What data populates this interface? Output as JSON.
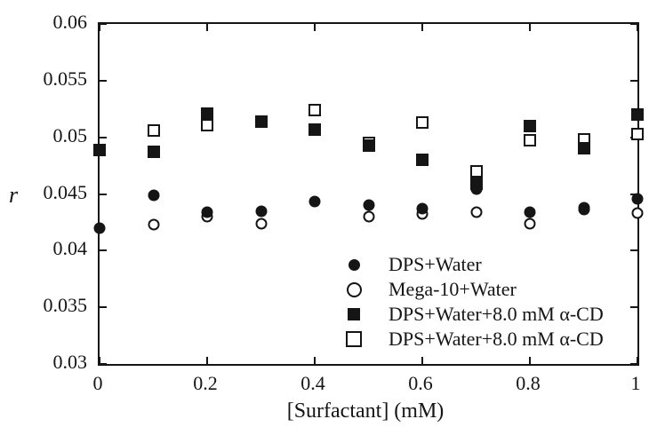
{
  "figure": {
    "background": "#ffffff",
    "ink": "#151515"
  },
  "chart_data": {
    "type": "scatter",
    "title": "",
    "xlabel": "[Surfactant] (mM)",
    "ylabel": "r",
    "xlim": [
      0,
      1
    ],
    "ylim": [
      0.03,
      0.06
    ],
    "grid": false,
    "frame": "box-with-inward-ticks",
    "x_ticks": [
      0,
      0.2,
      0.4,
      0.6,
      0.8,
      1
    ],
    "x_tick_labels": [
      "0",
      "0.2",
      "0.4",
      "0.6",
      "0.8",
      "1"
    ],
    "y_ticks": [
      0.03,
      0.035,
      0.04,
      0.045,
      0.05,
      0.055,
      0.06
    ],
    "y_tick_labels": [
      "0.03",
      "0.035",
      "0.04",
      "0.045",
      "0.05",
      "0.055",
      "0.06"
    ],
    "legend_position": "inside-lower-right",
    "series": [
      {
        "name": "DPS+Water",
        "marker": "filled-circle",
        "points": [
          [
            0,
            0.042
          ],
          [
            0.1,
            0.0449
          ],
          [
            0.2,
            0.0434
          ],
          [
            0.3,
            0.0435
          ],
          [
            0.4,
            0.0443
          ],
          [
            0.5,
            0.044
          ],
          [
            0.6,
            0.0437
          ],
          [
            0.7,
            0.0454
          ],
          [
            0.8,
            0.0434
          ],
          [
            0.9,
            0.0436
          ],
          [
            1,
            0.0446
          ]
        ]
      },
      {
        "name": "Mega-10+Water",
        "marker": "open-circle",
        "points": [
          [
            0.1,
            0.0423
          ],
          [
            0.2,
            0.043
          ],
          [
            0.3,
            0.0424
          ],
          [
            0.5,
            0.043
          ],
          [
            0.6,
            0.0432
          ],
          [
            0.7,
            0.0434
          ],
          [
            0.8,
            0.0424
          ],
          [
            0.9,
            0.0438
          ],
          [
            1,
            0.0433
          ]
        ]
      },
      {
        "name": "DPS+Water+8.0 mM α-CD",
        "marker": "filled-square",
        "points": [
          [
            0,
            0.0489
          ],
          [
            0.1,
            0.0487
          ],
          [
            0.2,
            0.0521
          ],
          [
            0.3,
            0.0514
          ],
          [
            0.4,
            0.0507
          ],
          [
            0.5,
            0.0493
          ],
          [
            0.6,
            0.048
          ],
          [
            0.7,
            0.0459
          ],
          [
            0.8,
            0.051
          ],
          [
            0.9,
            0.049
          ],
          [
            1,
            0.052
          ]
        ]
      },
      {
        "name": "DPS+Water+8.0 mM α-CD",
        "marker": "open-square",
        "points": [
          [
            0.1,
            0.0506
          ],
          [
            0.2,
            0.0511
          ],
          [
            0.4,
            0.0524
          ],
          [
            0.5,
            0.0495
          ],
          [
            0.6,
            0.0513
          ],
          [
            0.7,
            0.047
          ],
          [
            0.8,
            0.0497
          ],
          [
            0.9,
            0.0498
          ],
          [
            1,
            0.0503
          ]
        ]
      }
    ],
    "legend": [
      {
        "marker": "filled-circle",
        "label": "DPS+Water"
      },
      {
        "marker": "open-circle",
        "label": "Mega-10+Water"
      },
      {
        "marker": "filled-square",
        "label": "DPS+Water+8.0 mM α-CD"
      },
      {
        "marker": "open-square",
        "label": "DPS+Water+8.0 mM α-CD"
      }
    ]
  }
}
